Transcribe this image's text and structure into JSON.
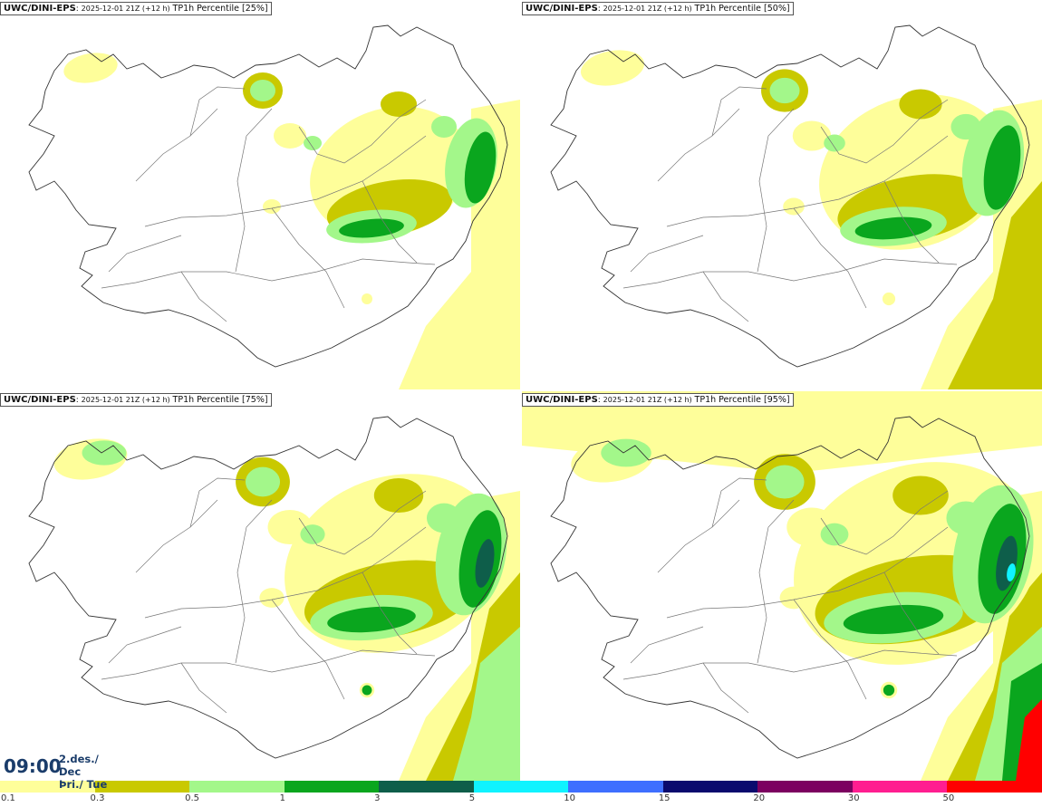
{
  "panels": [
    {
      "model": "UWC/DINI-EPS",
      "run": "2025-12-01 21Z (+12 h)",
      "param": "TP1h Percentile [25%]",
      "level": 1
    },
    {
      "model": "UWC/DINI-EPS",
      "run": "2025-12-01 21Z (+12 h)",
      "param": "TP1h Percentile [50%]",
      "level": 2
    },
    {
      "model": "UWC/DINI-EPS",
      "run": "2025-12-01 21Z (+12 h)",
      "param": "TP1h Percentile [75%]",
      "level": 3
    },
    {
      "model": "UWC/DINI-EPS",
      "run": "2025-12-01 21Z (+12 h)",
      "param": "TP1h Percentile [95%]",
      "level": 4
    }
  ],
  "valid_time": {
    "time": "09:00",
    "date": "2.des./ Dec",
    "weekday": "Þri./ Tue"
  },
  "legend": {
    "colors": [
      "#fefe9a",
      "#c9c900",
      "#a3f78a",
      "#0aa61e",
      "#0e5e4a",
      "#10f3ff",
      "#3f6fff",
      "#0a0a6e",
      "#7c0060",
      "#ff1e90",
      "#ff0000"
    ],
    "labels": [
      "0.1",
      "0.3",
      "0.5",
      "1",
      "3",
      "5",
      "10",
      "15",
      "20",
      "30",
      "50"
    ]
  }
}
